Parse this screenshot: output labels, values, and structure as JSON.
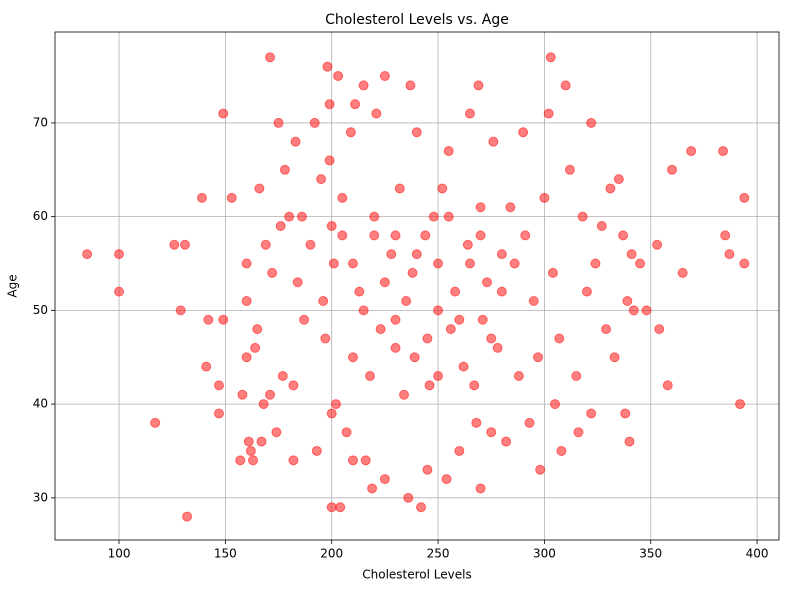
{
  "chart_data": {
    "type": "scatter",
    "title": "Cholesterol Levels vs. Age",
    "x_label": "Cholesterol Levels",
    "y_label": "Age",
    "color": "#ff0000",
    "alpha": 0.5,
    "grid": true,
    "xlim": [
      69.9,
      410.3
    ],
    "ylim": [
      25.5,
      79.7
    ],
    "xticks": [
      100,
      150,
      200,
      250,
      300,
      350,
      400
    ],
    "yticks": [
      30,
      40,
      50,
      60,
      70
    ],
    "x": [
      85,
      100,
      100,
      117,
      126,
      129,
      131,
      132,
      139,
      141,
      142,
      147,
      147,
      149,
      149,
      153,
      157,
      158,
      160,
      160,
      160,
      161,
      162,
      163,
      164,
      165,
      166,
      167,
      168,
      169,
      171,
      171,
      172,
      174,
      175,
      176,
      177,
      178,
      180,
      182,
      182,
      183,
      184,
      186,
      187,
      190,
      192,
      193,
      195,
      196,
      197,
      198,
      199,
      199,
      200,
      200,
      200,
      201,
      202,
      203,
      204,
      205,
      207,
      209,
      210,
      211,
      213,
      215,
      216,
      218,
      219,
      220,
      221,
      223,
      225,
      225,
      228,
      230,
      232,
      234,
      236,
      237,
      238,
      239,
      240,
      242,
      244,
      245,
      246,
      248,
      250,
      252,
      254,
      255,
      256,
      258,
      260,
      262,
      264,
      265,
      267,
      268,
      269,
      270,
      271,
      273,
      275,
      276,
      278,
      280,
      282,
      284,
      286,
      288,
      290,
      291,
      293,
      295,
      297,
      298,
      300,
      302,
      303,
      304,
      305,
      307,
      308,
      310,
      312,
      315,
      316,
      318,
      320,
      322,
      322,
      324,
      327,
      329,
      331,
      333,
      335,
      337,
      338,
      339,
      340,
      341,
      342,
      345,
      348,
      353,
      354,
      358,
      360,
      365,
      369,
      384,
      385,
      387,
      392,
      394,
      394,
      205,
      210,
      215,
      220,
      225,
      230,
      235,
      240,
      245,
      250,
      255,
      260,
      265,
      270,
      275,
      280,
      210,
      230,
      250,
      270
    ],
    "values": [
      56,
      56,
      52,
      38,
      57,
      50,
      57,
      28,
      62,
      44,
      49,
      42,
      39,
      71,
      49,
      62,
      34,
      41,
      55,
      45,
      51,
      36,
      35,
      34,
      46,
      48,
      63,
      36,
      40,
      57,
      77,
      41,
      54,
      37,
      70,
      59,
      43,
      65,
      60,
      42,
      34,
      68,
      53,
      60,
      49,
      57,
      70,
      35,
      64,
      51,
      47,
      76,
      72,
      66,
      59,
      39,
      29,
      55,
      40,
      75,
      29,
      62,
      37,
      69,
      34,
      72,
      52,
      74,
      34,
      43,
      31,
      58,
      71,
      48,
      75,
      32,
      56,
      46,
      63,
      41,
      30,
      74,
      54,
      45,
      69,
      29,
      58,
      33,
      42,
      60,
      50,
      63,
      32,
      67,
      48,
      52,
      35,
      44,
      57,
      71,
      42,
      38,
      74,
      31,
      49,
      53,
      37,
      68,
      46,
      56,
      36,
      61,
      55,
      43,
      69,
      58,
      38,
      51,
      45,
      33,
      62,
      71,
      77,
      54,
      40,
      47,
      35,
      74,
      65,
      43,
      37,
      60,
      52,
      70,
      39,
      55,
      59,
      48,
      63,
      45,
      64,
      58,
      39,
      51,
      36,
      56,
      50,
      55,
      50,
      57,
      48,
      42,
      65,
      54,
      67,
      67,
      58,
      56,
      40,
      62,
      55,
      58,
      55,
      50,
      60,
      53,
      58,
      51,
      56,
      47,
      55,
      60,
      49,
      55,
      58,
      47,
      52,
      45,
      49,
      43,
      61
    ]
  }
}
